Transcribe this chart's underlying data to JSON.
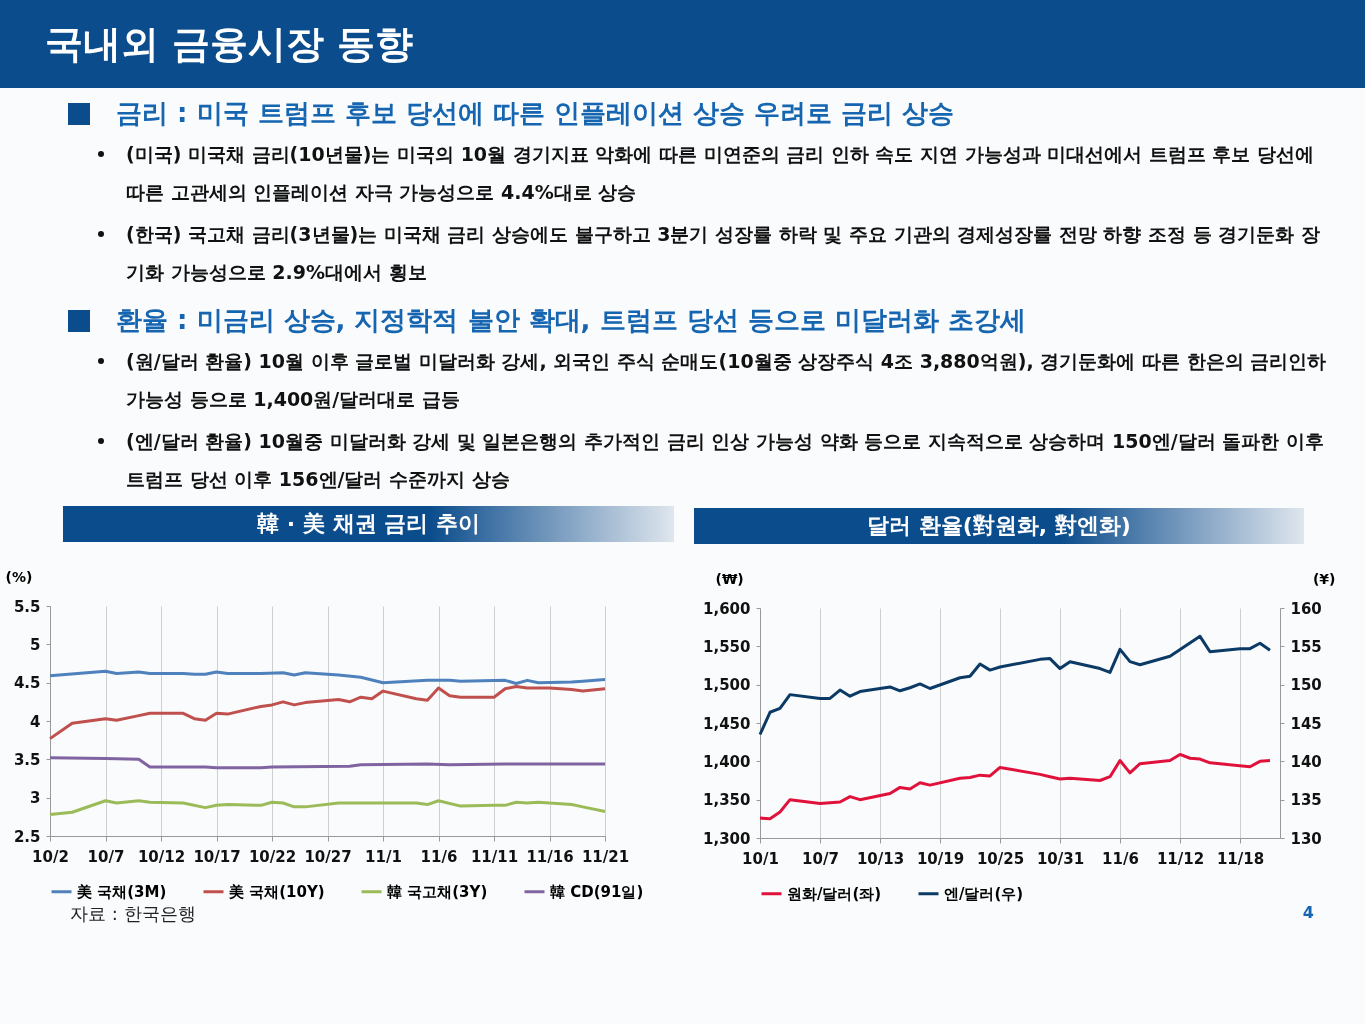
{
  "chart_data": [
    {
      "type": "other",
      "title": "국내외 금융시장 동향"
    },
    {
      "type": "other",
      "title": "금리 : 미국 트럼프 후보 당선에 따른 인플레이션 상승 우려로 금리 상승",
      "annotations": [
        "(미국) 미국채 금리(10년물)는 미국의 10월 경기지표 악화에 따른 미연준의 금리 인하 속도 지연 가능성과 미대선에서 트럼프 후보 당선에 따른 고관세의 인플레이션 자극 가능성으로 4.4%대로 상승",
        "(한국) 국고채 금리(3년물)는 미국채 금리 상승에도 불구하고 3분기 성장률 하락 및 주요 기관의 경제성장률 전망 하향 조정 등 경기둔화 장기화 가능성으로 2.9%대에서 횡보"
      ]
    },
    {
      "type": "other",
      "title": "환율 : 미금리 상승, 지정학적 불안 확대, 트럼프 당선 등으로 미달러화 초강세",
      "annotations": [
        "(원/달러 환율) 10월 이후 글로벌 미달러화 강세, 외국인 주식 순매도(10월중 상장주식 4조 3,880억원), 경기둔화에 따른 한은의 금리인하 가능성 등으로 1,400원/달러대로 급등",
        "(엔/달러 환율) 10월중 미달러화 강세 및 일본은행의 추가적인 금리 인상 가능성 약화 등으로 지속적으로 상승하며 150엔/달러 돌파한 이후 트럼프 당선 이후 156엔/달러 수준까지 상승"
      ]
    },
    {
      "type": "line",
      "title": "韓 · 美 채권 금리 추이",
      "ylabel": "(%)",
      "line_style": "solid",
      "grid": "x",
      "legend": "bottom",
      "annotations": [
        "자료 : 한국은행"
      ],
      "xlim": [
        "--10-02",
        "--11-21"
      ],
      "xticks": [
        {
          "value": "--10-02",
          "label": "10/2"
        },
        {
          "value": "--10-07",
          "label": "10/7"
        },
        {
          "value": "--10-12",
          "label": "10/12"
        },
        {
          "value": "--10-17",
          "label": "10/17"
        },
        {
          "value": "--10-22",
          "label": "10/22"
        },
        {
          "value": "--10-27",
          "label": "10/27"
        },
        {
          "value": "--11-01",
          "label": "11/1"
        },
        {
          "value": "--11-06",
          "label": "11/6"
        },
        {
          "value": "--11-11",
          "label": "11/11"
        },
        {
          "value": "--11-16",
          "label": "11/16"
        },
        {
          "value": "--11-21",
          "label": "11/21"
        }
      ],
      "ylim": [
        2.5,
        5.5
      ],
      "yticks": [
        2.5,
        3,
        3.5,
        4,
        4.5,
        5,
        5.5
      ],
      "series": [
        {
          "name": "美 국채(3M)",
          "color": "#4f81bd",
          "x": [
            "--10-02",
            "--10-07",
            "--10-08",
            "--10-10",
            "--10-11",
            "--10-14",
            "--10-15",
            "--10-16",
            "--10-17",
            "--10-18",
            "--10-21",
            "--10-23",
            "--10-24",
            "--10-25",
            "--10-27",
            "--10-28",
            "--10-30",
            "--11-01",
            "--11-05",
            "--11-07",
            "--11-08",
            "--11-12",
            "--11-13",
            "--11-14",
            "--11-15",
            "--11-18",
            "--11-19",
            "--11-21"
          ],
          "values": [
            4.59,
            4.65,
            4.62,
            4.64,
            4.62,
            4.62,
            4.61,
            4.61,
            4.64,
            4.62,
            4.62,
            4.63,
            4.6,
            4.63,
            4.61,
            4.6,
            4.57,
            4.5,
            4.53,
            4.53,
            4.52,
            4.53,
            4.49,
            4.53,
            4.5,
            4.51,
            4.52,
            4.54
          ]
        },
        {
          "name": "美 국채(10Y)",
          "color": "#c0504d",
          "x": [
            "--10-02",
            "--10-04",
            "--10-07",
            "--10-08",
            "--10-10",
            "--10-11",
            "--10-14",
            "--10-15",
            "--10-16",
            "--10-17",
            "--10-18",
            "--10-21",
            "--10-22",
            "--10-23",
            "--10-24",
            "--10-25",
            "--10-28",
            "--10-29",
            "--10-30",
            "--10-31",
            "--11-01",
            "--11-04",
            "--11-05",
            "--11-06",
            "--11-07",
            "--11-08",
            "--11-11",
            "--11-12",
            "--11-13",
            "--11-14",
            "--11-16",
            "--11-18",
            "--11-19",
            "--11-21"
          ],
          "values": [
            3.77,
            3.97,
            4.03,
            4.01,
            4.07,
            4.1,
            4.1,
            4.03,
            4.01,
            4.1,
            4.09,
            4.19,
            4.21,
            4.25,
            4.21,
            4.24,
            4.28,
            4.25,
            4.31,
            4.29,
            4.39,
            4.29,
            4.27,
            4.43,
            4.33,
            4.31,
            4.31,
            4.42,
            4.45,
            4.43,
            4.43,
            4.41,
            4.39,
            4.42
          ]
        },
        {
          "name": "韓 국고채(3Y)",
          "color": "#9bbb59",
          "x": [
            "--10-02",
            "--10-04",
            "--10-07",
            "--10-08",
            "--10-10",
            "--10-11",
            "--10-14",
            "--10-16",
            "--10-17",
            "--10-18",
            "--10-21",
            "--10-22",
            "--10-23",
            "--10-24",
            "--10-25",
            "--10-28",
            "--11-04",
            "--11-05",
            "--11-06",
            "--11-08",
            "--11-11",
            "--11-12",
            "--11-13",
            "--11-14",
            "--11-15",
            "--11-18",
            "--11-19",
            "--11-21"
          ],
          "values": [
            2.78,
            2.81,
            2.96,
            2.93,
            2.96,
            2.94,
            2.93,
            2.87,
            2.9,
            2.91,
            2.9,
            2.94,
            2.93,
            2.88,
            2.88,
            2.93,
            2.93,
            2.91,
            2.96,
            2.89,
            2.9,
            2.9,
            2.94,
            2.93,
            2.94,
            2.91,
            2.88,
            2.82
          ]
        },
        {
          "name": "韓 CD(91일)",
          "color": "#8064a2",
          "x": [
            "--10-02",
            "--10-07",
            "--10-10",
            "--10-11",
            "--10-16",
            "--10-17",
            "--10-21",
            "--10-22",
            "--10-29",
            "--10-30",
            "--11-05",
            "--11-07",
            "--11-12",
            "--11-21"
          ],
          "values": [
            3.52,
            3.51,
            3.5,
            3.4,
            3.4,
            3.39,
            3.39,
            3.4,
            3.41,
            3.43,
            3.44,
            3.43,
            3.44,
            3.44
          ]
        }
      ]
    },
    {
      "type": "line",
      "title": "달러 환율(對원화, 對엔화)",
      "ylabel": "(₩)",
      "y2label": "(¥)",
      "line_style": "solid",
      "grid": "x",
      "legend": "bottom",
      "annotations": [
        "4"
      ],
      "xlim": [
        "--10-01",
        "--11-22"
      ],
      "xticks": [
        {
          "value": "--10-01",
          "label": "10/1"
        },
        {
          "value": "--10-07",
          "label": "10/7"
        },
        {
          "value": "--10-13",
          "label": "10/13"
        },
        {
          "value": "--10-19",
          "label": "10/19"
        },
        {
          "value": "--10-25",
          "label": "10/25"
        },
        {
          "value": "--10-31",
          "label": "10/31"
        },
        {
          "value": "--11-06",
          "label": "11/6"
        },
        {
          "value": "--11-12",
          "label": "11/12"
        },
        {
          "value": "--11-18",
          "label": "11/18"
        }
      ],
      "ylim": [
        1300,
        1600
      ],
      "yticks": [
        {
          "value": 1300,
          "label": "1,300"
        },
        {
          "value": 1350,
          "label": "1,350"
        },
        {
          "value": 1400,
          "label": "1,400"
        },
        {
          "value": 1450,
          "label": "1,450"
        },
        {
          "value": 1500,
          "label": "1,500"
        },
        {
          "value": 1550,
          "label": "1,550"
        },
        {
          "value": 1600,
          "label": "1,600"
        }
      ],
      "y2lim": [
        130,
        160
      ],
      "y2ticks": [
        130,
        135,
        140,
        145,
        150,
        155,
        160
      ],
      "series": [
        {
          "name": "원화/달러(좌)",
          "color": "#e0123c",
          "x": [
            "--10-01",
            "--10-02",
            "--10-03",
            "--10-04",
            "--10-07",
            "--10-09",
            "--10-10",
            "--10-11",
            "--10-14",
            "--10-15",
            "--10-16",
            "--10-17",
            "--10-18",
            "--10-21",
            "--10-22",
            "--10-23",
            "--10-24",
            "--10-25",
            "--10-29",
            "--10-30",
            "--10-31",
            "--11-01",
            "--11-04",
            "--11-05",
            "--11-06",
            "--11-07",
            "--11-08",
            "--11-11",
            "--11-12",
            "--11-13",
            "--11-14",
            "--11-15",
            "--11-19",
            "--11-20",
            "--11-21"
          ],
          "values": [
            1326,
            1325,
            1334,
            1350,
            1345,
            1347,
            1354,
            1350,
            1358,
            1366,
            1364,
            1372,
            1369,
            1378,
            1379,
            1382,
            1381,
            1392,
            1383,
            1380,
            1377,
            1378,
            1375,
            1380,
            1401,
            1385,
            1397,
            1401,
            1409,
            1404,
            1403,
            1398,
            1393,
            1400,
            1401
          ]
        },
        {
          "name": "엔/달러(우)",
          "color": "#0b3a66",
          "axis": "y2",
          "x": [
            "--10-01",
            "--10-02",
            "--10-03",
            "--10-04",
            "--10-07",
            "--10-08",
            "--10-09",
            "--10-10",
            "--10-11",
            "--10-14",
            "--10-15",
            "--10-16",
            "--10-17",
            "--10-18",
            "--10-21",
            "--10-22",
            "--10-23",
            "--10-24",
            "--10-25",
            "--10-29",
            "--10-30",
            "--10-31",
            "--11-01",
            "--11-04",
            "--11-05",
            "--11-06",
            "--11-07",
            "--11-08",
            "--11-11",
            "--11-14",
            "--11-15",
            "--11-18",
            "--11-19",
            "--11-20",
            "--11-21"
          ],
          "values": [
            143.5,
            146.4,
            146.9,
            148.7,
            148.2,
            148.2,
            149.3,
            148.5,
            149.1,
            149.7,
            149.2,
            149.6,
            150.1,
            149.5,
            150.9,
            151.1,
            152.7,
            151.9,
            152.3,
            153.3,
            153.4,
            152.1,
            153.0,
            152.1,
            151.6,
            154.6,
            153.0,
            152.6,
            153.7,
            156.3,
            154.3,
            154.7,
            154.7,
            155.4,
            154.5
          ]
        }
      ]
    }
  ]
}
